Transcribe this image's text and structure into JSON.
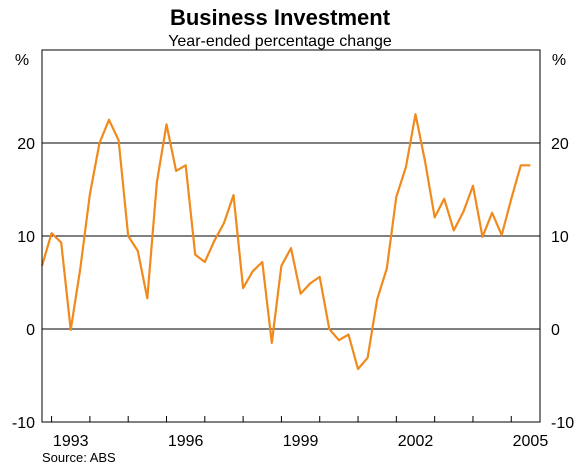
{
  "chart_data": {
    "type": "line",
    "title": "Business Investment",
    "subtitle": "Year-ended percentage change",
    "ylabel_left": "%",
    "ylabel_right": "%",
    "ylim": [
      -10,
      30
    ],
    "yticks": [
      -10,
      0,
      10,
      20
    ],
    "xlim": [
      1992.75,
      2005.75
    ],
    "xticks": [
      1993,
      1996,
      1999,
      2002,
      2005
    ],
    "grid": "horizontal",
    "line_color": "#f08a1c",
    "source": "Source: ABS",
    "series": [
      {
        "x": [
          1992.75,
          1993.0,
          1993.25,
          1993.5,
          1993.75,
          1994.0,
          1994.25,
          1994.5,
          1994.75,
          1995.0,
          1995.25,
          1995.5,
          1995.75,
          1996.0,
          1996.25,
          1996.5,
          1996.75,
          1997.0,
          1997.25,
          1997.5,
          1997.75,
          1998.0,
          1998.25,
          1998.5,
          1998.75,
          1999.0,
          1999.25,
          1999.5,
          1999.75,
          2000.0,
          2000.25,
          2000.5,
          2000.75,
          2001.0,
          2001.25,
          2001.5,
          2001.75,
          2002.0,
          2002.25,
          2002.5,
          2002.75,
          2003.0,
          2003.25,
          2003.5,
          2003.75,
          2004.0,
          2004.25,
          2004.5,
          2004.75,
          2005.0,
          2005.25,
          2005.5
        ],
        "values": [
          6.8,
          10.3,
          9.3,
          -0.1,
          6.5,
          14.5,
          20.0,
          22.5,
          20.3,
          10.0,
          8.4,
          3.3,
          15.8,
          22.0,
          17.0,
          17.6,
          8.0,
          7.2,
          9.5,
          11.4,
          14.4,
          4.4,
          6.2,
          7.2,
          -1.5,
          6.8,
          8.7,
          3.8,
          4.9,
          5.6,
          0.0,
          -1.2,
          -0.6,
          -4.3,
          -3.1,
          3.2,
          6.5,
          14.2,
          17.4,
          23.1,
          18.0,
          12.0,
          14.0,
          10.6,
          12.6,
          15.4,
          9.9,
          12.5,
          10.1,
          14.0,
          17.6,
          17.6
        ]
      }
    ]
  }
}
